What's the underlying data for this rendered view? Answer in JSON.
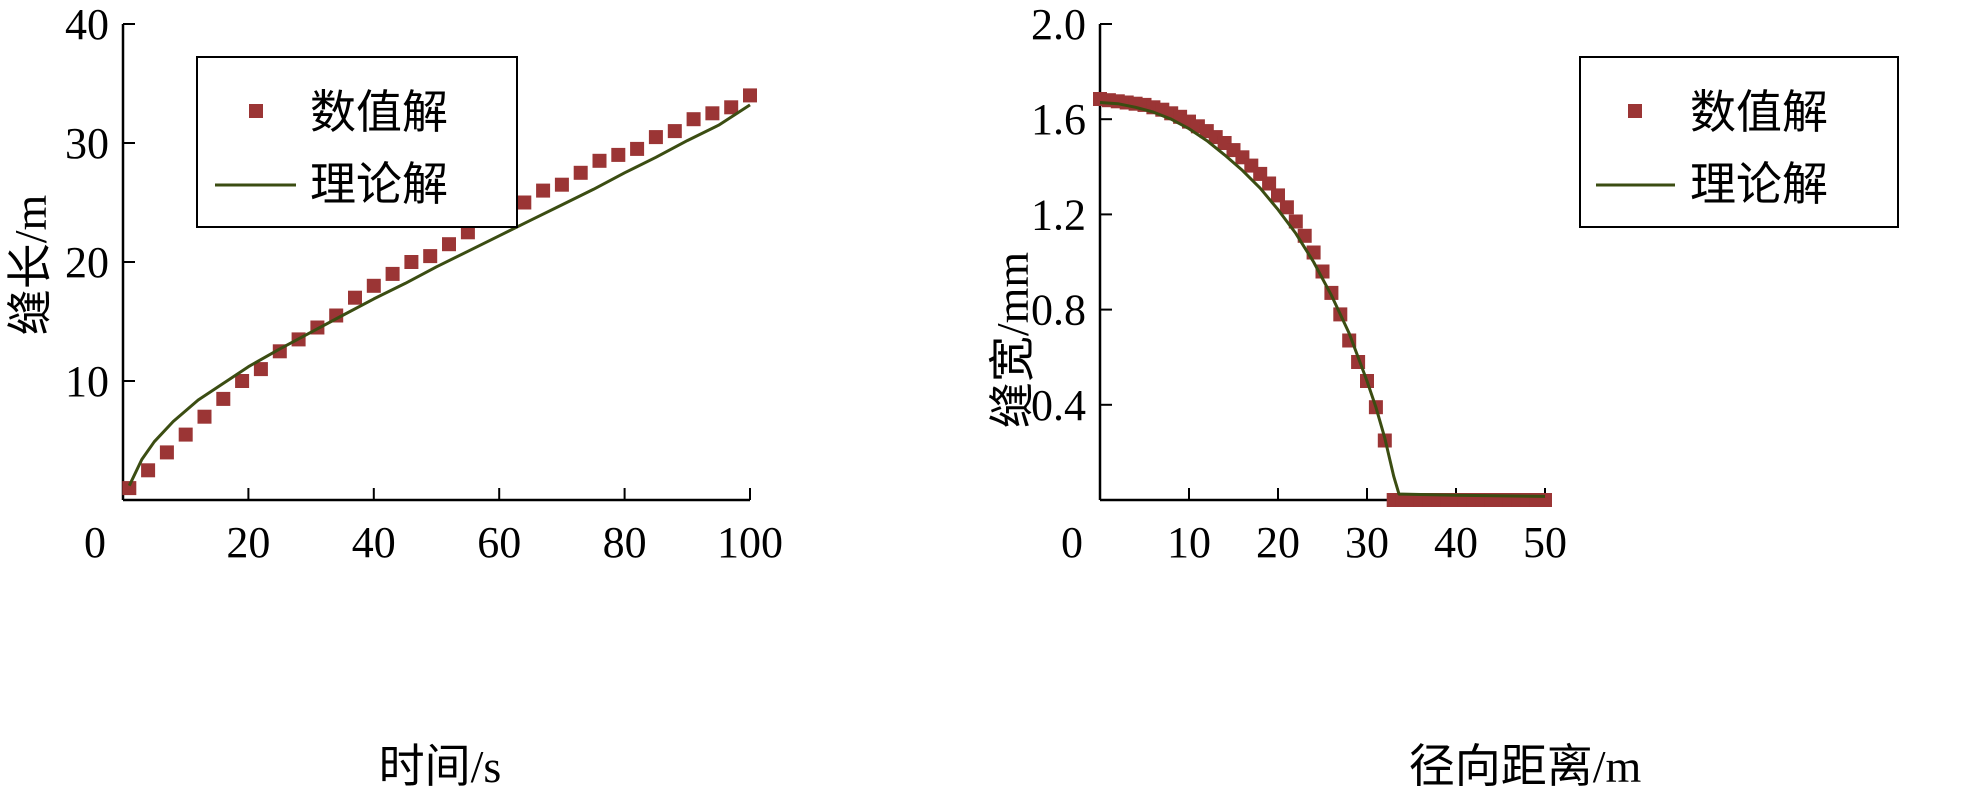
{
  "chart_data": [
    {
      "type": "line",
      "xlabel": "时间/s",
      "ylabel": "缝长/m",
      "xlim": [
        0,
        100
      ],
      "ylim": [
        0,
        40
      ],
      "x_ticks": [
        "0",
        "20",
        "40",
        "60",
        "80",
        "100"
      ],
      "y_ticks": [
        "10",
        "20",
        "30",
        "40"
      ],
      "legend_position": "top-left",
      "grid": false,
      "series": [
        {
          "name": "数值解",
          "marker": "square",
          "color": "#9b3535",
          "x": [
            1,
            4,
            7,
            10,
            13,
            16,
            19,
            22,
            25,
            28,
            31,
            34,
            37,
            40,
            43,
            46,
            49,
            52,
            55,
            58,
            61,
            64,
            67,
            70,
            73,
            76,
            79,
            82,
            85,
            88,
            91,
            94,
            97,
            100
          ],
          "y": [
            1,
            2.5,
            4,
            5.5,
            7,
            8.5,
            10,
            11,
            12.5,
            13.5,
            14.5,
            15.5,
            17,
            18,
            19,
            20,
            20.5,
            21.5,
            22.5,
            23.5,
            24.5,
            25,
            26,
            26.5,
            27.5,
            28.5,
            29,
            29.5,
            30.5,
            31,
            32,
            32.5,
            33,
            34
          ]
        },
        {
          "name": "理论解",
          "marker": "line",
          "color": "#3b4d12",
          "x": [
            1,
            3,
            5,
            8,
            12,
            16,
            20,
            25,
            30,
            35,
            40,
            45,
            50,
            55,
            60,
            65,
            70,
            75,
            80,
            85,
            90,
            95,
            100
          ],
          "y": [
            1.2,
            3.4,
            4.9,
            6.6,
            8.4,
            9.8,
            11.2,
            12.7,
            14.1,
            15.5,
            16.9,
            18.2,
            19.6,
            20.9,
            22.2,
            23.5,
            24.8,
            26.1,
            27.5,
            28.8,
            30.2,
            31.5,
            33.2
          ]
        }
      ]
    },
    {
      "type": "line",
      "xlabel": "径向距离/m",
      "ylabel": "缝宽/mm",
      "xlim": [
        0,
        50
      ],
      "ylim": [
        0,
        2.0
      ],
      "x_ticks": [
        "0",
        "10",
        "20",
        "30",
        "40",
        "50"
      ],
      "y_ticks": [
        "0.4",
        "0.8",
        "1.2",
        "1.6",
        "2.0"
      ],
      "legend_position": "top-right",
      "grid": false,
      "series": [
        {
          "name": "数值解",
          "marker": "square",
          "color": "#9b3535",
          "x": [
            0,
            1,
            2,
            3,
            4,
            5,
            6,
            7,
            8,
            9,
            10,
            11,
            12,
            13,
            14,
            15,
            16,
            17,
            18,
            19,
            20,
            21,
            22,
            23,
            24,
            25,
            26,
            27,
            28,
            29,
            30,
            31,
            32,
            33,
            34,
            35,
            36,
            37,
            38,
            39,
            40,
            41,
            42,
            43,
            44,
            45,
            46,
            47,
            48,
            49,
            50
          ],
          "y": [
            1.685,
            1.68,
            1.675,
            1.67,
            1.665,
            1.66,
            1.65,
            1.64,
            1.625,
            1.61,
            1.59,
            1.57,
            1.55,
            1.525,
            1.5,
            1.47,
            1.44,
            1.405,
            1.37,
            1.33,
            1.28,
            1.23,
            1.17,
            1.11,
            1.04,
            0.96,
            0.87,
            0.78,
            0.67,
            0.58,
            0.5,
            0.39,
            0.25,
            0,
            0,
            0,
            0,
            0,
            0,
            0,
            0,
            0,
            0,
            0,
            0,
            0,
            0,
            0,
            0,
            0,
            0
          ]
        },
        {
          "name": "理论解",
          "marker": "line",
          "color": "#3b4d12",
          "x": [
            0,
            2,
            4,
            6,
            8,
            10,
            12,
            14,
            16,
            18,
            20,
            22,
            24,
            26,
            28,
            30,
            31,
            32,
            33,
            33.6,
            34,
            40,
            50
          ],
          "y": [
            1.67,
            1.665,
            1.65,
            1.63,
            1.6,
            1.56,
            1.51,
            1.45,
            1.385,
            1.31,
            1.22,
            1.12,
            1.0,
            0.86,
            0.7,
            0.5,
            0.39,
            0.26,
            0.1,
            0.025,
            0.025,
            0.02,
            0.015
          ]
        }
      ]
    }
  ]
}
